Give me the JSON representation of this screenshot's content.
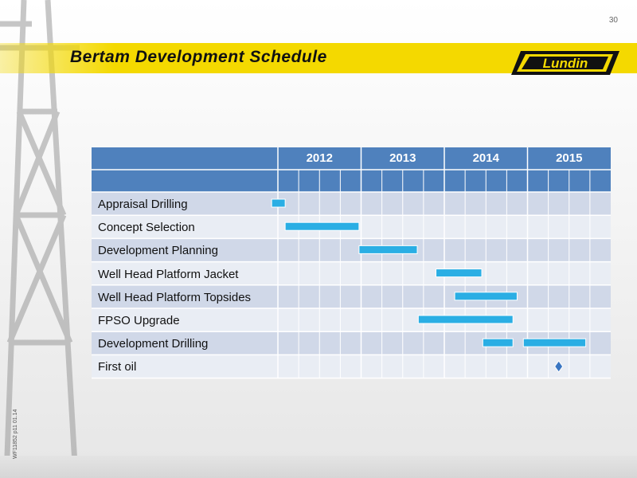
{
  "page_number": "30",
  "title": "Bertam Development Schedule",
  "logo_text": "Lundin",
  "doc_code": "WF11852 p11 01.14",
  "colors": {
    "header_blue": "#4f81bd",
    "row_dark": "#d0d8e8",
    "row_light": "#e9edf4",
    "bar": "#2aaee4",
    "title_band": "#f4d900"
  },
  "chart_data": {
    "type": "gantt",
    "title": "Bertam Development Schedule",
    "years": [
      "2012",
      "2013",
      "2014",
      "2015"
    ],
    "periods_per_year": 4,
    "x_unit": "quarter",
    "x_start": 2012,
    "tasks": [
      {
        "label": "Appraisal Drilling",
        "bars": [
          [
            -0.3,
            0.35
          ]
        ]
      },
      {
        "label": "Concept Selection",
        "bars": [
          [
            0.35,
            3.9
          ]
        ]
      },
      {
        "label": "Development Planning",
        "bars": [
          [
            3.9,
            6.7
          ]
        ]
      },
      {
        "label": "Well Head Platform Jacket",
        "bars": [
          [
            7.6,
            9.8
          ]
        ]
      },
      {
        "label": "Well Head Platform Topsides",
        "bars": [
          [
            8.5,
            11.5
          ]
        ]
      },
      {
        "label": "FPSO Upgrade",
        "bars": [
          [
            6.75,
            11.3
          ]
        ]
      },
      {
        "label": "Development Drilling",
        "bars": [
          [
            9.85,
            11.3
          ],
          [
            11.8,
            14.8
          ]
        ]
      },
      {
        "label": "First oil",
        "milestone": 13.5
      }
    ]
  }
}
